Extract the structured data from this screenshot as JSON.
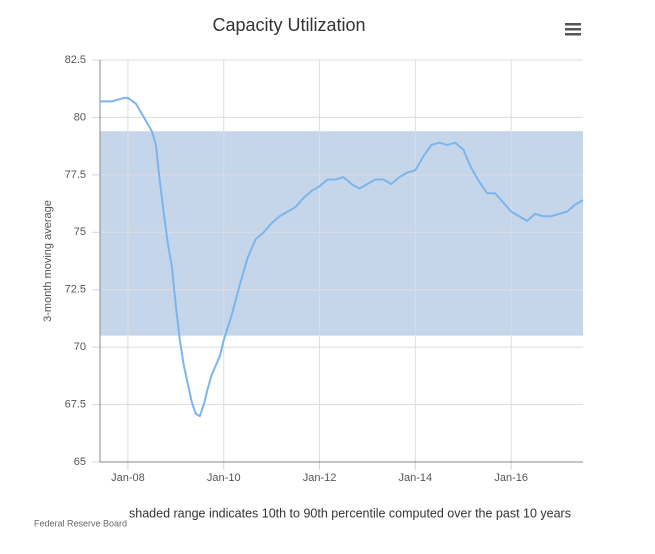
{
  "chart_data": {
    "type": "line",
    "title": "Capacity Utilization",
    "y_label": "3-month moving average",
    "note": "shaded range indicates 10th to 90th percentile computed over the past 10 years",
    "source": "Federal Reserve Board",
    "x": [
      "2007-06",
      "2007-09",
      "2007-12",
      "2008-01",
      "2008-03",
      "2008-05",
      "2008-07",
      "2008-08",
      "2008-09",
      "2008-10",
      "2008-11",
      "2008-12",
      "2009-01",
      "2009-02",
      "2009-03",
      "2009-04",
      "2009-05",
      "2009-06",
      "2009-07",
      "2009-08",
      "2009-09",
      "2009-10",
      "2009-11",
      "2009-12",
      "2010-01",
      "2010-03",
      "2010-05",
      "2010-07",
      "2010-09",
      "2010-11",
      "2011-01",
      "2011-03",
      "2011-05",
      "2011-07",
      "2011-09",
      "2011-11",
      "2012-01",
      "2012-03",
      "2012-05",
      "2012-07",
      "2012-09",
      "2012-11",
      "2013-01",
      "2013-03",
      "2013-05",
      "2013-07",
      "2013-09",
      "2013-11",
      "2014-01",
      "2014-03",
      "2014-05",
      "2014-07",
      "2014-09",
      "2014-11",
      "2015-01",
      "2015-03",
      "2015-05",
      "2015-07",
      "2015-09",
      "2015-11",
      "2016-01",
      "2016-03",
      "2016-05",
      "2016-07",
      "2016-09",
      "2016-11",
      "2017-01",
      "2017-03",
      "2017-05",
      "2017-07"
    ],
    "series": [
      {
        "name": "Capacity Utilization",
        "color": "#7cb5ec",
        "values": [
          80.7,
          80.7,
          80.85,
          80.85,
          80.6,
          80.0,
          79.4,
          78.8,
          77.2,
          75.8,
          74.5,
          73.5,
          71.8,
          70.3,
          69.2,
          68.4,
          67.6,
          67.1,
          67.0,
          67.5,
          68.2,
          68.8,
          69.2,
          69.6,
          70.3,
          71.4,
          72.7,
          73.9,
          74.7,
          75.0,
          75.4,
          75.7,
          75.9,
          76.1,
          76.5,
          76.8,
          77.0,
          77.3,
          77.3,
          77.4,
          77.1,
          76.9,
          77.1,
          77.3,
          77.3,
          77.1,
          77.4,
          77.6,
          77.7,
          78.3,
          78.8,
          78.9,
          78.8,
          78.9,
          78.6,
          77.8,
          77.2,
          76.7,
          76.7,
          76.3,
          75.9,
          75.7,
          75.5,
          75.8,
          75.7,
          75.7,
          75.8,
          75.9,
          76.2,
          76.4
        ]
      }
    ],
    "band": [
      70.5,
      79.4
    ],
    "band_color": "#c6d6ea",
    "xlim": [
      "2007-06",
      "2017-07"
    ],
    "xticks": [
      {
        "value": "2008-01",
        "label": "Jan-08"
      },
      {
        "value": "2010-01",
        "label": "Jan-10"
      },
      {
        "value": "2012-01",
        "label": "Jan-12"
      },
      {
        "value": "2014-01",
        "label": "Jan-14"
      },
      {
        "value": "2016-01",
        "label": "Jan-16"
      }
    ],
    "ylim": [
      65,
      82.5
    ],
    "yticks": [
      65,
      67.5,
      70,
      72.5,
      75,
      77.5,
      80,
      82.5
    ],
    "grid": true
  }
}
